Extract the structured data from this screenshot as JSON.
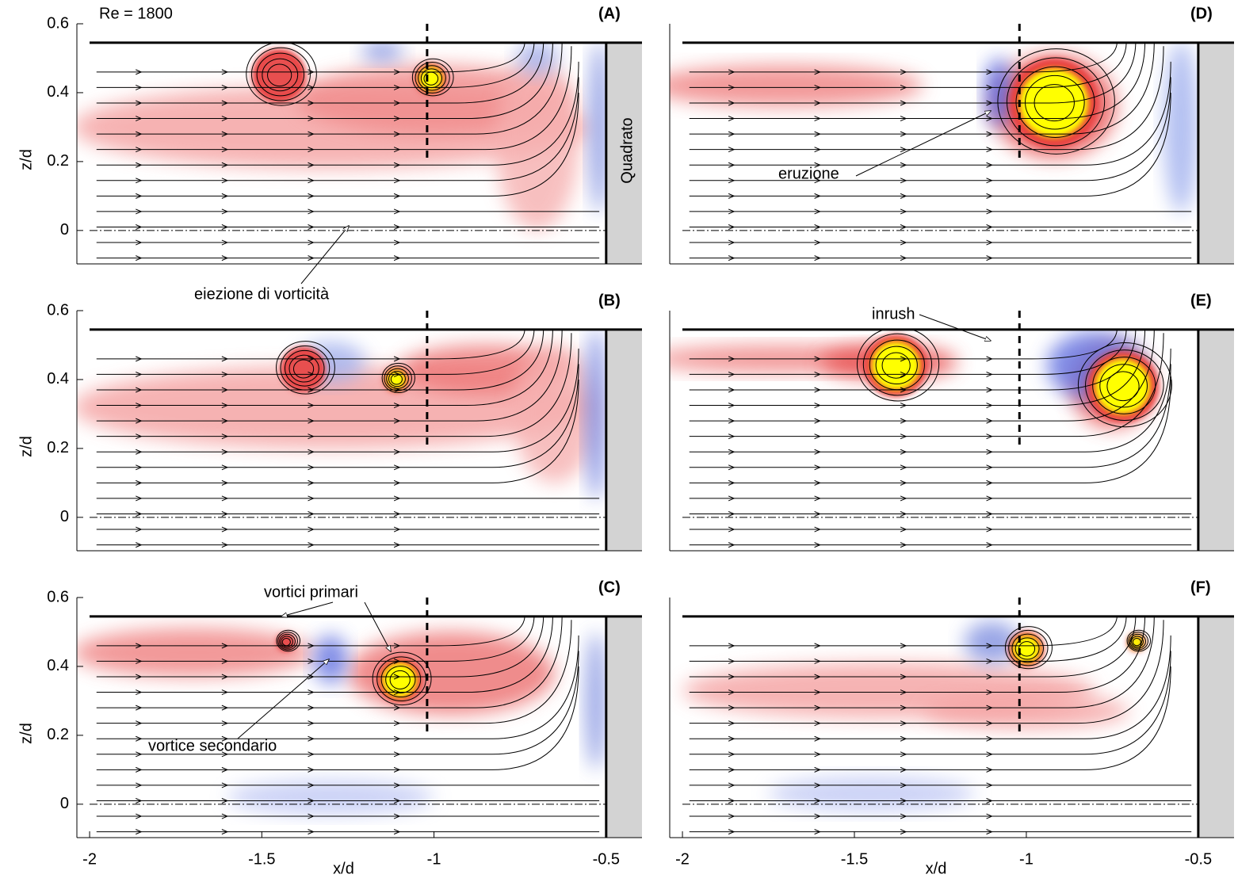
{
  "chart_data": [
    {
      "type": "flow",
      "panel_label": "(A)",
      "ylabel": "z/d",
      "xlim": [
        -2.037,
        -0.396
      ],
      "ylim": [
        -0.097,
        0.6
      ],
      "yticks": [
        0.6,
        0.4,
        0.2,
        0
      ],
      "annotations": [
        "Re = 1800",
        "Quadrato",
        "eiezione di vorticità"
      ]
    },
    {
      "type": "flow",
      "panel_label": "(B)",
      "ylabel": "z/d",
      "xlim": [
        -2.037,
        -0.396
      ],
      "ylim": [
        -0.097,
        0.6
      ],
      "yticks": [
        0.6,
        0.4,
        0.2,
        0
      ],
      "annotations": []
    },
    {
      "type": "flow",
      "panel_label": "(C)",
      "ylabel": "z/d",
      "xlabel": "x/d",
      "xlim": [
        -2.037,
        -0.396
      ],
      "ylim": [
        -0.097,
        0.6
      ],
      "yticks": [
        0.6,
        0.4,
        0.2,
        0
      ],
      "xticks": [
        -2,
        -1.5,
        -1,
        -0.5
      ],
      "annotations": [
        "vortici primari",
        "vortice secondario"
      ]
    },
    {
      "type": "flow",
      "panel_label": "(D)",
      "xlim": [
        -2.037,
        -0.396
      ],
      "ylim": [
        -0.097,
        0.6
      ],
      "annotations": [
        "eruzione"
      ]
    },
    {
      "type": "flow",
      "panel_label": "(E)",
      "xlim": [
        -2.037,
        -0.396
      ],
      "ylim": [
        -0.097,
        0.6
      ],
      "annotations": [
        "inrush"
      ]
    },
    {
      "type": "flow",
      "panel_label": "(F)",
      "xlabel": "x/d",
      "xlim": [
        -2.037,
        -0.396
      ],
      "ylim": [
        -0.097,
        0.6
      ],
      "xticks": [
        -2,
        -1.5,
        -1,
        -0.5
      ],
      "annotations": []
    }
  ]
}
